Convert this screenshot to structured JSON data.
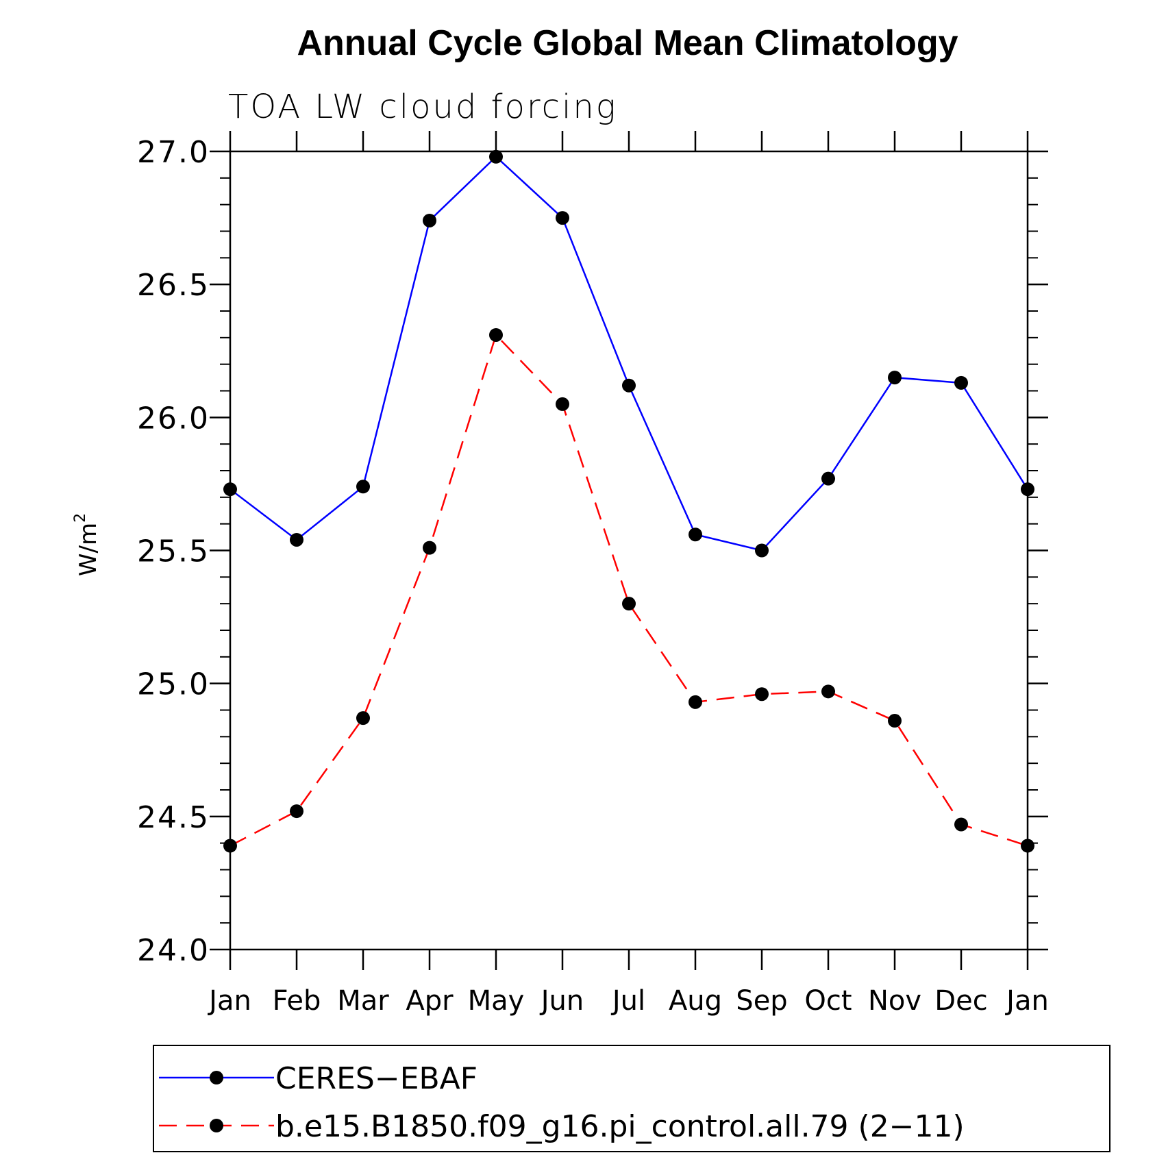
{
  "chart_data": {
    "type": "line",
    "title": "Annual Cycle Global Mean Climatology",
    "subtitle": "TOA LW cloud forcing",
    "xlabel": "",
    "ylabel": "W/m",
    "ylabel_sup": "2",
    "categories": [
      "Jan",
      "Feb",
      "Mar",
      "Apr",
      "May",
      "Jun",
      "Jul",
      "Aug",
      "Sep",
      "Oct",
      "Nov",
      "Dec",
      "Jan"
    ],
    "ylim": [
      24.0,
      27.0
    ],
    "yticks": [
      "24.0",
      "24.5",
      "25.0",
      "25.5",
      "26.0",
      "26.5",
      "27.0"
    ],
    "grid": false,
    "legend_position": "bottom",
    "series": [
      {
        "name": "CERES−EBAF",
        "color": "#0000ff",
        "dash": "solid",
        "marker": "circle",
        "values": [
          25.73,
          25.54,
          25.74,
          26.74,
          26.98,
          26.75,
          26.12,
          25.56,
          25.5,
          25.77,
          26.15,
          26.13,
          25.73
        ]
      },
      {
        "name": "b.e15.B1850.f09_g16.pi_control.all.79 (2−11)",
        "color": "#ff0000",
        "dash": "dashed",
        "marker": "circle",
        "values": [
          24.39,
          24.52,
          24.87,
          25.51,
          26.31,
          26.05,
          25.3,
          24.93,
          24.96,
          24.97,
          24.86,
          24.47,
          24.39
        ]
      }
    ]
  }
}
